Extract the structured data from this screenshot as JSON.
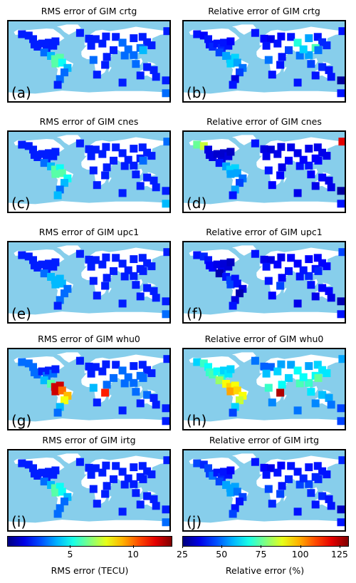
{
  "colors": {
    "ocean": "#87ceeb",
    "land": "#ffffff",
    "colormap": "jet"
  },
  "chart_data": [
    {
      "type": "map",
      "panel": "(a)",
      "title": "RMS error of GIM crtg",
      "metric": "rms",
      "model": "crtg"
    },
    {
      "type": "map",
      "panel": "(b)",
      "title": "Relative error of GIM crtg",
      "metric": "rel",
      "model": "crtg"
    },
    {
      "type": "map",
      "panel": "(c)",
      "title": "RMS error of GIM cnes",
      "metric": "rms",
      "model": "cnes"
    },
    {
      "type": "map",
      "panel": "(d)",
      "title": "Relative error of GIM cnes",
      "metric": "rel",
      "model": "cnes"
    },
    {
      "type": "map",
      "panel": "(e)",
      "title": "RMS error of GIM upc1",
      "metric": "rms",
      "model": "upc1"
    },
    {
      "type": "map",
      "panel": "(f)",
      "title": "Relative error of GIM upc1",
      "metric": "rel",
      "model": "upc1"
    },
    {
      "type": "map",
      "panel": "(g)",
      "title": "RMS error of GIM whu0",
      "metric": "rms",
      "model": "whu0"
    },
    {
      "type": "map",
      "panel": "(h)",
      "title": "Relative error of GIM whu0",
      "metric": "rel",
      "model": "whu0"
    },
    {
      "type": "map",
      "panel": "(i)",
      "title": "RMS error of GIM irtg",
      "metric": "rms",
      "model": "irtg"
    },
    {
      "type": "map",
      "panel": "(j)",
      "title": "Relative error of GIM irtg",
      "metric": "rel",
      "model": "irtg"
    }
  ],
  "colorbars": {
    "rms": {
      "label": "RMS error (TECU)",
      "range": [
        0,
        13
      ],
      "ticks": [
        "5",
        "10"
      ],
      "tick_values": [
        5,
        10
      ]
    },
    "rel": {
      "label": "Relative error (%)",
      "range": [
        25,
        130
      ],
      "ticks": [
        "25",
        "50",
        "75",
        "100",
        "125"
      ],
      "tick_values": [
        25,
        50,
        75,
        100,
        125
      ]
    }
  },
  "stations": [
    {
      "lon": -150,
      "lat": 61,
      "rms": {
        "crtg": 2,
        "cnes": 2,
        "upc1": 2,
        "whu0": 3,
        "irtg": 2
      },
      "rel": {
        "crtg": 40,
        "cnes": 75,
        "upc1": 40,
        "whu0": 60,
        "irtg": 45
      }
    },
    {
      "lon": -135,
      "lat": 58,
      "rms": {
        "crtg": 2,
        "cnes": 2,
        "upc1": 2,
        "whu0": 3,
        "irtg": 2
      },
      "rel": {
        "crtg": 38,
        "cnes": 85,
        "upc1": 42,
        "whu0": 70,
        "irtg": 42
      }
    },
    {
      "lon": -125,
      "lat": 50,
      "rms": {
        "crtg": 2,
        "cnes": 2,
        "upc1": 2,
        "whu0": 3,
        "irtg": 2
      },
      "rel": {
        "crtg": 40,
        "cnes": 35,
        "upc1": 40,
        "whu0": 65,
        "irtg": 45
      }
    },
    {
      "lon": -122,
      "lat": 38,
      "rms": {
        "crtg": 2,
        "cnes": 2,
        "upc1": 2,
        "whu0": 3,
        "irtg": 2
      },
      "rel": {
        "crtg": 40,
        "cnes": 35,
        "upc1": 38,
        "whu0": 70,
        "irtg": 45
      }
    },
    {
      "lon": -115,
      "lat": 33,
      "rms": {
        "crtg": 2,
        "cnes": 2,
        "upc1": 2,
        "whu0": 3,
        "irtg": 2
      },
      "rel": {
        "crtg": 42,
        "cnes": 35,
        "upc1": 38,
        "whu0": 72,
        "irtg": 50
      }
    },
    {
      "lon": -105,
      "lat": 40,
      "rms": {
        "crtg": 2,
        "cnes": 2,
        "upc1": 2,
        "whu0": 2,
        "irtg": 2
      },
      "rel": {
        "crtg": 40,
        "cnes": 33,
        "upc1": 36,
        "whu0": 65,
        "irtg": 40
      }
    },
    {
      "lon": -95,
      "lat": 30,
      "rms": {
        "crtg": 2,
        "cnes": 2,
        "upc1": 2,
        "whu0": 3,
        "irtg": 2
      },
      "rel": {
        "crtg": 42,
        "cnes": 34,
        "upc1": 36,
        "whu0": 68,
        "irtg": 42
      }
    },
    {
      "lon": -90,
      "lat": 42,
      "rms": {
        "crtg": 2,
        "cnes": 2,
        "upc1": 2,
        "whu0": 2,
        "irtg": 2
      },
      "rel": {
        "crtg": 40,
        "cnes": 33,
        "upc1": 34,
        "whu0": 60,
        "irtg": 40
      }
    },
    {
      "lon": -80,
      "lat": 35,
      "rms": {
        "crtg": 2,
        "cnes": 2,
        "upc1": 2,
        "whu0": 3,
        "irtg": 2
      },
      "rel": {
        "crtg": 40,
        "cnes": 35,
        "upc1": 34,
        "whu0": 62,
        "irtg": 40
      }
    },
    {
      "lon": -75,
      "lat": 45,
      "rms": {
        "crtg": 2,
        "cnes": 2,
        "upc1": 2,
        "whu0": 2,
        "irtg": 2
      },
      "rel": {
        "crtg": 38,
        "cnes": 32,
        "upc1": 32,
        "whu0": 60,
        "irtg": 38
      }
    },
    {
      "lon": -100,
      "lat": 20,
      "rms": {
        "crtg": 3,
        "cnes": 3,
        "upc1": 3,
        "whu0": 4,
        "irtg": 3
      },
      "rel": {
        "crtg": 45,
        "cnes": 40,
        "upc1": 30,
        "whu0": 80,
        "irtg": 45
      }
    },
    {
      "lon": -85,
      "lat": 12,
      "rms": {
        "crtg": 4,
        "cnes": 4,
        "upc1": 4,
        "whu0": 6,
        "irtg": 4
      },
      "rel": {
        "crtg": 55,
        "cnes": 55,
        "upc1": 40,
        "whu0": 90,
        "irtg": 55
      }
    },
    {
      "lon": -76,
      "lat": 5,
      "rms": {
        "crtg": 6,
        "cnes": 6,
        "upc1": 4,
        "whu0": 12,
        "irtg": 6
      },
      "rel": {
        "crtg": 55,
        "cnes": 60,
        "upc1": 45,
        "whu0": 95,
        "irtg": 55
      }
    },
    {
      "lon": -65,
      "lat": 8,
      "rms": {
        "crtg": 6,
        "cnes": 5,
        "upc1": 4,
        "whu0": 12,
        "irtg": 5
      },
      "rel": {
        "crtg": 60,
        "cnes": 60,
        "upc1": 40,
        "whu0": 90,
        "irtg": 55
      }
    },
    {
      "lon": -75,
      "lat": -5,
      "rms": {
        "crtg": 6,
        "cnes": 6,
        "upc1": 4,
        "whu0": 12,
        "irtg": 6
      },
      "rel": {
        "crtg": 60,
        "cnes": 55,
        "upc1": 45,
        "whu0": 100,
        "irtg": 55
      }
    },
    {
      "lon": -60,
      "lat": -3,
      "rms": {
        "crtg": 5,
        "cnes": 6,
        "upc1": 4,
        "whu0": 10,
        "irtg": 5
      },
      "rel": {
        "crtg": 55,
        "cnes": 55,
        "upc1": 40,
        "whu0": 95,
        "irtg": 50
      }
    },
    {
      "lon": -48,
      "lat": -15,
      "rms": {
        "crtg": 4,
        "cnes": 5,
        "upc1": 3,
        "whu0": 9,
        "irtg": 4
      },
      "rel": {
        "crtg": 50,
        "cnes": 50,
        "upc1": 35,
        "whu0": 90,
        "irtg": 45
      }
    },
    {
      "lon": -55,
      "lat": -25,
      "rms": {
        "crtg": 3,
        "cnes": 4,
        "upc1": 3,
        "whu0": 8,
        "irtg": 3
      },
      "rel": {
        "crtg": 45,
        "cnes": 45,
        "upc1": 30,
        "whu0": 85,
        "irtg": 40
      }
    },
    {
      "lon": -65,
      "lat": -40,
      "rms": {
        "crtg": 3,
        "cnes": 3,
        "upc1": 3,
        "whu0": 4,
        "irtg": 3
      },
      "rel": {
        "crtg": 35,
        "cnes": 55,
        "upc1": 35,
        "whu0": 60,
        "irtg": 40
      }
    },
    {
      "lon": -70,
      "lat": -53,
      "rms": {
        "crtg": 2,
        "cnes": 4,
        "upc1": 2,
        "whu0": 3,
        "irtg": 3
      },
      "rel": {
        "crtg": 40,
        "cnes": 40,
        "upc1": 40,
        "whu0": 45,
        "irtg": 45
      }
    },
    {
      "lon": -20,
      "lat": 64,
      "rms": {
        "crtg": 2,
        "cnes": 2,
        "upc1": 2,
        "whu0": 2,
        "irtg": 2
      },
      "rel": {
        "crtg": 40,
        "cnes": 40,
        "upc1": 40,
        "whu0": 50,
        "irtg": 40
      }
    },
    {
      "lon": 0,
      "lat": 51,
      "rms": {
        "crtg": 2,
        "cnes": 2,
        "upc1": 2,
        "whu0": 2,
        "irtg": 2
      },
      "rel": {
        "crtg": 38,
        "cnes": 35,
        "upc1": 36,
        "whu0": 48,
        "irtg": 38
      }
    },
    {
      "lon": 15,
      "lat": 50,
      "rms": {
        "crtg": 2,
        "cnes": 2,
        "upc1": 2,
        "whu0": 2,
        "irtg": 2
      },
      "rel": {
        "crtg": 36,
        "cnes": 34,
        "upc1": 35,
        "whu0": 48,
        "irtg": 36
      }
    },
    {
      "lon": 38,
      "lat": 56,
      "rms": {
        "crtg": 2,
        "cnes": 2,
        "upc1": 2,
        "whu0": 2,
        "irtg": 2
      },
      "rel": {
        "crtg": 38,
        "cnes": 35,
        "upc1": 36,
        "whu0": 55,
        "irtg": 38
      }
    },
    {
      "lon": 30,
      "lat": 40,
      "rms": {
        "crtg": 2,
        "cnes": 2,
        "upc1": 2,
        "whu0": 2,
        "irtg": 2
      },
      "rel": {
        "crtg": 40,
        "cnes": 36,
        "upc1": 38,
        "whu0": 60,
        "irtg": 40
      }
    },
    {
      "lon": 5,
      "lat": 35,
      "rms": {
        "crtg": 2,
        "cnes": 2,
        "upc1": 2,
        "whu0": 2,
        "irtg": 2
      },
      "rel": {
        "crtg": 40,
        "cnes": 36,
        "upc1": 40,
        "whu0": 58,
        "irtg": 40
      }
    },
    {
      "lon": 60,
      "lat": 55,
      "rms": {
        "crtg": 2,
        "cnes": 2,
        "upc1": 2,
        "whu0": 2,
        "irtg": 2
      },
      "rel": {
        "crtg": 40,
        "cnes": 36,
        "upc1": 38,
        "whu0": 55,
        "irtg": 40
      }
    },
    {
      "lon": 75,
      "lat": 42,
      "rms": {
        "crtg": 3,
        "cnes": 2,
        "upc1": 2,
        "whu0": 3,
        "irtg": 2
      },
      "rel": {
        "crtg": 68,
        "cnes": 36,
        "upc1": 38,
        "whu0": 65,
        "irtg": 40
      }
    },
    {
      "lon": 100,
      "lat": 52,
      "rms": {
        "crtg": 2,
        "cnes": 2,
        "upc1": 2,
        "whu0": 2,
        "irtg": 2
      },
      "rel": {
        "crtg": 55,
        "cnes": 36,
        "upc1": 38,
        "whu0": 55,
        "irtg": 40
      }
    },
    {
      "lon": 120,
      "lat": 55,
      "rms": {
        "crtg": 2,
        "cnes": 2,
        "upc1": 2,
        "whu0": 2,
        "irtg": 2
      },
      "rel": {
        "crtg": 40,
        "cnes": 36,
        "upc1": 38,
        "whu0": 60,
        "irtg": 40
      }
    },
    {
      "lon": 130,
      "lat": 43,
      "rms": {
        "crtg": 2,
        "cnes": 2,
        "upc1": 2,
        "whu0": 2,
        "irtg": 2
      },
      "rel": {
        "crtg": 42,
        "cnes": 36,
        "upc1": 38,
        "whu0": 62,
        "irtg": 40
      }
    },
    {
      "lon": 140,
      "lat": 36,
      "rms": {
        "crtg": 2,
        "cnes": 2,
        "upc1": 2,
        "whu0": 2,
        "irtg": 2
      },
      "rel": {
        "crtg": 42,
        "cnes": 36,
        "upc1": 38,
        "whu0": 62,
        "irtg": 40
      }
    },
    {
      "lon": 115,
      "lat": 30,
      "rms": {
        "crtg": 3,
        "cnes": 2,
        "upc1": 2,
        "whu0": 3,
        "irtg": 2
      },
      "rel": {
        "crtg": 72,
        "cnes": 38,
        "upc1": 40,
        "whu0": 65,
        "irtg": 42
      }
    },
    {
      "lon": 121,
      "lat": 25,
      "rms": {
        "crtg": 4,
        "cnes": 3,
        "upc1": 2,
        "whu0": 3,
        "irtg": 2
      },
      "rel": {
        "crtg": 50,
        "cnes": 38,
        "upc1": 42,
        "whu0": 75,
        "irtg": 42
      }
    },
    {
      "lon": 100,
      "lat": 14,
      "rms": {
        "crtg": 3,
        "cnes": 2,
        "upc1": 2,
        "whu0": 3,
        "irtg": 2
      },
      "rel": {
        "crtg": 55,
        "cnes": 40,
        "upc1": 42,
        "whu0": 70,
        "irtg": 45
      }
    },
    {
      "lon": 80,
      "lat": 13,
      "rms": {
        "crtg": 3,
        "cnes": 2,
        "upc1": 2,
        "whu0": 3,
        "irtg": 2
      },
      "rel": {
        "crtg": 50,
        "cnes": 40,
        "upc1": 40,
        "whu0": 72,
        "irtg": 45
      }
    },
    {
      "lon": 88,
      "lat": 27,
      "rms": {
        "crtg": 3,
        "cnes": 2,
        "upc1": 2,
        "whu0": 3,
        "irtg": 2
      },
      "rel": {
        "crtg": 60,
        "cnes": 38,
        "upc1": 40,
        "whu0": 65,
        "irtg": 42
      }
    },
    {
      "lon": 55,
      "lat": 25,
      "rms": {
        "crtg": 2,
        "cnes": 2,
        "upc1": 2,
        "whu0": 3,
        "irtg": 2
      },
      "rel": {
        "crtg": 45,
        "cnes": 38,
        "upc1": 40,
        "whu0": 60,
        "irtg": 42
      }
    },
    {
      "lon": 40,
      "lat": 10,
      "rms": {
        "crtg": 2,
        "cnes": 2,
        "upc1": 2,
        "whu0": 3,
        "irtg": 2
      },
      "rel": {
        "crtg": 40,
        "cnes": 36,
        "upc1": 38,
        "whu0": 65,
        "irtg": 40
      }
    },
    {
      "lon": 36,
      "lat": -8,
      "rms": {
        "crtg": 2,
        "cnes": 2,
        "upc1": 2,
        "whu0": 11,
        "irtg": 2
      },
      "rel": {
        "crtg": 40,
        "cnes": 38,
        "upc1": 45,
        "whu0": 125,
        "irtg": 45
      }
    },
    {
      "lon": 10,
      "lat": 3,
      "rms": {
        "crtg": 3,
        "cnes": 2,
        "upc1": 2,
        "whu0": 4,
        "irtg": 2
      },
      "rel": {
        "crtg": 50,
        "cnes": 40,
        "upc1": 40,
        "whu0": 70,
        "irtg": 45
      }
    },
    {
      "lon": 18,
      "lat": -30,
      "rms": {
        "crtg": 2,
        "cnes": 2,
        "upc1": 2,
        "whu0": 2,
        "irtg": 2
      },
      "rel": {
        "crtg": 40,
        "cnes": 38,
        "upc1": 38,
        "whu0": 52,
        "irtg": 42
      }
    },
    {
      "lon": 75,
      "lat": -48,
      "rms": {
        "crtg": 2,
        "cnes": 2,
        "upc1": 2,
        "whu0": 2,
        "irtg": 2
      },
      "rel": {
        "crtg": 40,
        "cnes": 36,
        "upc1": 36,
        "whu0": 50,
        "irtg": 40
      }
    },
    {
      "lon": 105,
      "lat": -6,
      "rms": {
        "crtg": 3,
        "cnes": 2,
        "upc1": 2,
        "whu0": 3,
        "irtg": 2
      },
      "rel": {
        "crtg": 45,
        "cnes": 38,
        "upc1": 40,
        "whu0": 62,
        "irtg": 42
      }
    },
    {
      "lon": 115,
      "lat": -32,
      "rms": {
        "crtg": 2,
        "cnes": 2,
        "upc1": 2,
        "whu0": 2,
        "irtg": 2
      },
      "rel": {
        "crtg": 40,
        "cnes": 36,
        "upc1": 36,
        "whu0": 52,
        "irtg": 40
      }
    },
    {
      "lon": 130,
      "lat": -13,
      "rms": {
        "crtg": 2,
        "cnes": 2,
        "upc1": 2,
        "whu0": 3,
        "irtg": 2
      },
      "rel": {
        "crtg": 42,
        "cnes": 38,
        "upc1": 38,
        "whu0": 58,
        "irtg": 42
      }
    },
    {
      "lon": 145,
      "lat": -20,
      "rms": {
        "crtg": 2,
        "cnes": 2,
        "upc1": 2,
        "whu0": 2,
        "irtg": 2
      },
      "rel": {
        "crtg": 40,
        "cnes": 36,
        "upc1": 38,
        "whu0": 55,
        "irtg": 40
      }
    },
    {
      "lon": 150,
      "lat": -35,
      "rms": {
        "crtg": 2,
        "cnes": 2,
        "upc1": 2,
        "whu0": 2,
        "irtg": 2
      },
      "rel": {
        "crtg": 40,
        "cnes": 36,
        "upc1": 36,
        "whu0": 50,
        "irtg": 40
      }
    },
    {
      "lon": 175,
      "lat": 68,
      "rms": {
        "crtg": 2,
        "cnes": 3,
        "upc1": 2,
        "whu0": 2,
        "irtg": 2
      },
      "rel": {
        "crtg": 40,
        "cnes": 120,
        "upc1": 45,
        "whu0": 55,
        "irtg": 42
      }
    },
    {
      "lon": 172,
      "lat": -43,
      "rms": {
        "crtg": 2,
        "cnes": 2,
        "upc1": 2,
        "whu0": 2,
        "irtg": 2
      },
      "rel": {
        "crtg": 28,
        "cnes": 28,
        "upc1": 30,
        "whu0": 45,
        "irtg": 32
      }
    },
    {
      "lon": 172,
      "lat": -72,
      "rms": {
        "crtg": 3,
        "cnes": 4,
        "upc1": 3,
        "whu0": 2,
        "irtg": 3
      },
      "rel": {
        "crtg": 40,
        "cnes": 40,
        "upc1": 40,
        "whu0": 45,
        "irtg": 40
      }
    }
  ]
}
